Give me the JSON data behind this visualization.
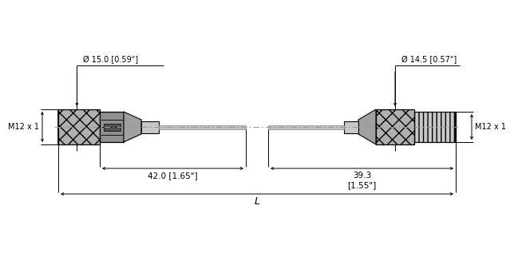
{
  "bg_color": "#ffffff",
  "line_color": "#000000",
  "left_connector": {
    "label_thread": "M12 x 1",
    "label_dia": "Ø 15.0 [0.59\"]"
  },
  "right_connector": {
    "label_thread": "M12 x 1",
    "label_dia": "Ø 14.5 [0.57\"]"
  },
  "dim_left_length": "42.0 [1.65\"]",
  "dim_right_length": "39.3\n[1.55\"]",
  "dim_total": "L"
}
